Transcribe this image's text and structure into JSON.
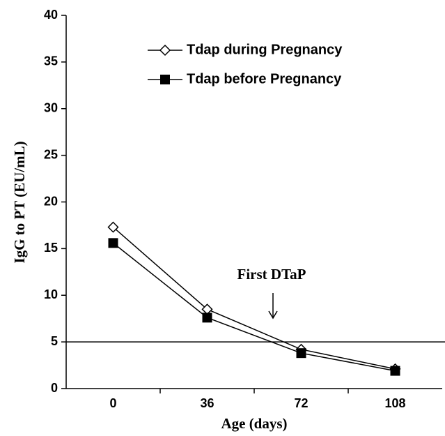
{
  "chart_data": {
    "type": "line",
    "x_label": "Age (days)",
    "y_label": "IgG to PT (EU/mL)",
    "categories": [
      "0",
      "36",
      "72",
      "108"
    ],
    "series": [
      {
        "name": "Tdap during Pregnancy",
        "color": "#000000",
        "marker": "open-diamond",
        "values": [
          17.3,
          8.5,
          4.2,
          2.1
        ]
      },
      {
        "name": "Tdap before Pregnancy",
        "color": "#000000",
        "marker": "filled-square",
        "values": [
          15.6,
          7.6,
          3.8,
          1.9
        ]
      }
    ],
    "reference_line": 5,
    "annotation": "First DTaP",
    "ylim": [
      0,
      40
    ],
    "yticks": [
      0,
      5,
      10,
      15,
      20,
      25,
      30,
      35,
      40
    ]
  }
}
